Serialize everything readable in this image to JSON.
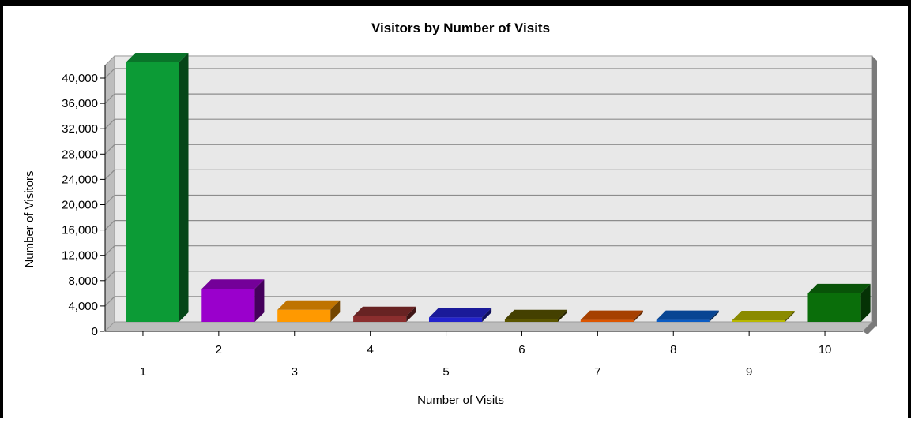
{
  "chart_data": {
    "type": "bar",
    "title": "Visitors by Number of Visits",
    "xlabel": "Number of Visits",
    "ylabel": "Number of Visitors",
    "categories": [
      "1",
      "2",
      "3",
      "4",
      "5",
      "6",
      "7",
      "8",
      "9",
      "10"
    ],
    "values": [
      41000,
      5200,
      1900,
      900,
      700,
      400,
      300,
      300,
      250,
      4500
    ],
    "ylim": [
      0,
      42000
    ],
    "yticks": [
      0,
      4000,
      8000,
      12000,
      16000,
      20000,
      24000,
      28000,
      32000,
      36000,
      40000
    ],
    "ytick_labels": [
      "0",
      "4,000",
      "8,000",
      "12,000",
      "16,000",
      "20,000",
      "24,000",
      "28,000",
      "32,000",
      "36,000",
      "40,000"
    ],
    "grid": true,
    "legend": "none",
    "colors": [
      "#0c9b36",
      "#9a00cc",
      "#ff9900",
      "#8b2e2e",
      "#2222cc",
      "#5a5500",
      "#dd5500",
      "#0b5cc4",
      "#b8b800",
      "#0a6e0a"
    ],
    "wall_color": "#e8e8e8"
  }
}
